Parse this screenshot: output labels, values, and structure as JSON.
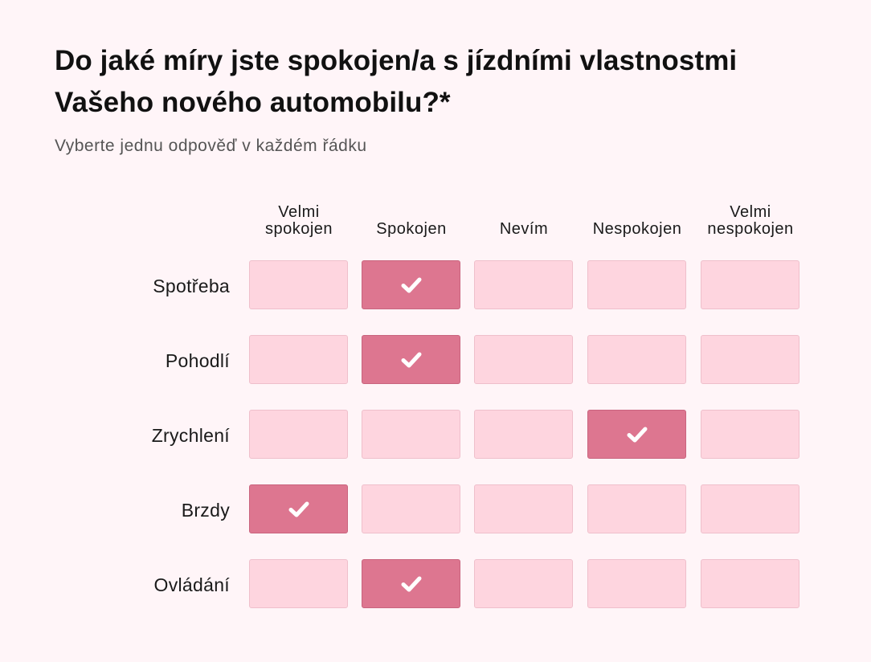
{
  "question": {
    "title": "Do jaké míry jste spokojen/a s jízdními vlastnostmi Vašeho nového automobilu?*",
    "instruction": "Vyberte jednu odpověď v každém řádku"
  },
  "columns": [
    {
      "line1": "Velmi",
      "line2": "spokojen"
    },
    {
      "line1": "",
      "line2": "Spokojen"
    },
    {
      "line1": "",
      "line2": "Nevím"
    },
    {
      "line1": "",
      "line2": "Nespokojen"
    },
    {
      "line1": "Velmi",
      "line2": "nespokojen"
    }
  ],
  "rows": [
    {
      "label": "Spotřeba",
      "selected_column": 1
    },
    {
      "label": "Pohodlí",
      "selected_column": 1
    },
    {
      "label": "Zrychlení",
      "selected_column": 3
    },
    {
      "label": "Brzdy",
      "selected_column": 0
    },
    {
      "label": "Ovládání",
      "selected_column": 1
    }
  ],
  "icons": {
    "selected": "check-icon"
  },
  "colors": {
    "background": "#fff5f8",
    "cell": "#fed5df",
    "cell_selected": "#dd7690",
    "check": "#ffffff"
  }
}
